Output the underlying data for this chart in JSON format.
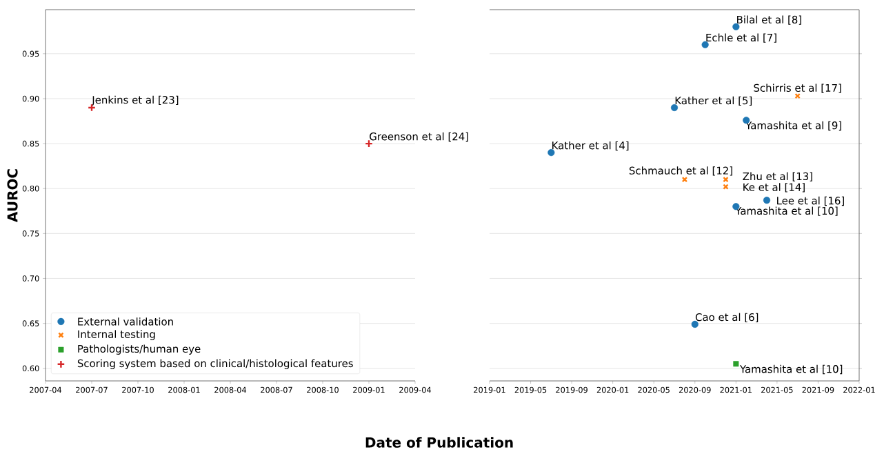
{
  "chart_data": [
    {
      "type": "scatter",
      "ylabel": "AUROC",
      "xlabel": "Date of Publication",
      "xlim": [
        "2007-04",
        "2009-04"
      ],
      "xticks": [
        "2007-04",
        "2007-07",
        "2007-10",
        "2008-01",
        "2008-04",
        "2008-07",
        "2008-10",
        "2009-01",
        "2009-04"
      ],
      "ylim": [
        0.586,
        0.999
      ],
      "yticks": [
        {
          "value": 0.6,
          "label": "0.60"
        },
        {
          "value": 0.65,
          "label": "0.65"
        },
        {
          "value": 0.7,
          "label": "0.70"
        },
        {
          "value": 0.75,
          "label": "0.75"
        },
        {
          "value": 0.8,
          "label": "0.80"
        },
        {
          "value": 0.85,
          "label": "0.85"
        },
        {
          "value": 0.9,
          "label": "0.90"
        },
        {
          "value": 0.95,
          "label": "0.95"
        }
      ],
      "grid": "y",
      "legend": "bottom left",
      "series": [
        {
          "name": "Scoring system based on clinical/histological features",
          "color": "#d62728",
          "marker": "plus",
          "x": [
            "2007-07",
            "2009-01"
          ],
          "values": [
            0.89,
            0.85
          ]
        }
      ],
      "annotations": [
        {
          "text": "Jenkins et al [23]",
          "x": "2007-07",
          "y": 0.89
        },
        {
          "text": "Greenson et al [24]",
          "x": "2009-01",
          "y": 0.85
        }
      ]
    },
    {
      "type": "scatter",
      "xlim": [
        "2019-01",
        "2022-01"
      ],
      "xticks": [
        "2019-01",
        "2019-05",
        "2019-09",
        "2020-01",
        "2020-05",
        "2020-09",
        "2021-01",
        "2021-05",
        "2021-09",
        "2022-01"
      ],
      "ylim": [
        0.586,
        0.999
      ],
      "yticks": [
        0.6,
        0.65,
        0.7,
        0.75,
        0.8,
        0.85,
        0.9,
        0.95
      ],
      "tick_labels": "x",
      "grid": "y",
      "legend": "bottom left",
      "series": [
        {
          "name": "External validation",
          "color": "#1f77b4",
          "marker": "circle",
          "x": [
            "2021-01",
            "2020-10",
            "2020-07",
            "2021-02",
            "2019-07",
            "2021-04",
            "2021-01",
            "2020-09"
          ],
          "values": [
            0.98,
            0.96,
            0.89,
            0.876,
            0.84,
            0.787,
            0.78,
            0.649
          ]
        },
        {
          "name": "Internal testing",
          "color": "#ff7f0e",
          "marker": "cross",
          "x": [
            "2021-07",
            "2020-08",
            "2020-12",
            "2020-12"
          ],
          "values": [
            0.903,
            0.81,
            0.81,
            0.802
          ]
        },
        {
          "name": "Pathologists/human eye",
          "color": "#2ca02c",
          "marker": "square",
          "x": [
            "2021-01"
          ],
          "values": [
            0.605
          ]
        }
      ],
      "annotations": [
        {
          "text": "Bilal et al [8]",
          "x": "2021-01",
          "y": 0.98
        },
        {
          "text": "Echle et al [7]",
          "x": "2020-10",
          "y": 0.96
        },
        {
          "text": "Schirris et al [17]",
          "x": "2021-07",
          "y": 0.903
        },
        {
          "text": "Kather et al [5]",
          "x": "2020-07",
          "y": 0.89
        },
        {
          "text": "Yamashita et al [9]",
          "x": "2021-02",
          "y": 0.876
        },
        {
          "text": "Kather et al [4]",
          "x": "2019-07",
          "y": 0.84
        },
        {
          "text": "Schmauch et al [12]",
          "x": "2020-08",
          "y": 0.81
        },
        {
          "text": "Zhu et al [13]",
          "x": "2020-12",
          "y": 0.81
        },
        {
          "text": "Ke et al [14]",
          "x": "2020-12",
          "y": 0.802
        },
        {
          "text": "Lee et al [16]",
          "x": "2021-04",
          "y": 0.787
        },
        {
          "text": "Yamashita et al [10]",
          "x": "2021-01",
          "y": 0.78
        },
        {
          "text": "Cao et al [6]",
          "x": "2020-09",
          "y": 0.649
        },
        {
          "text": "Yamashita et al [10]",
          "x": "2021-01",
          "y": 0.605
        }
      ]
    }
  ]
}
